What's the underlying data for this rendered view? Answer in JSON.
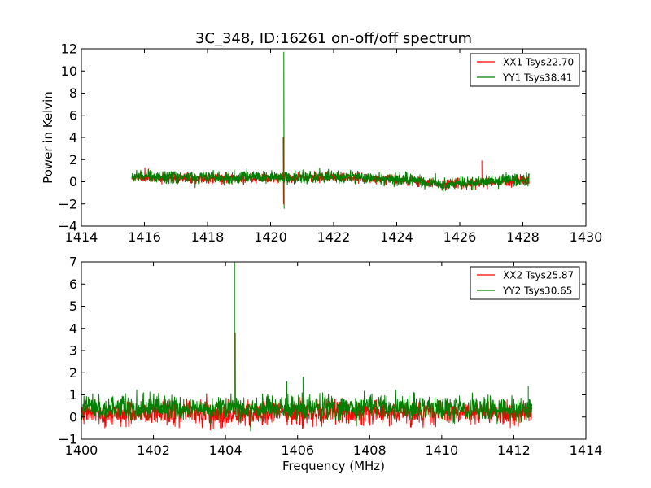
{
  "figure_title": "3C_348, ID:16261 on-off/off spectrum",
  "chart_data": [
    {
      "type": "line",
      "title": "3C_348, ID:16261 on-off/off spectrum",
      "xlabel": "",
      "ylabel": "Power in Kelvin",
      "xlim": [
        1414,
        1430
      ],
      "ylim": [
        -4,
        12
      ],
      "xticks": [
        1414,
        1416,
        1418,
        1420,
        1422,
        1424,
        1426,
        1428,
        1430
      ],
      "yticks": [
        -4,
        -2,
        0,
        2,
        4,
        6,
        8,
        10,
        12
      ],
      "legend_position": "top-right",
      "grid": false,
      "series": [
        {
          "name": "XX1 Tsys22.70",
          "color": "#ff0000",
          "x_range": [
            1415.6,
            1428.2
          ],
          "baseline": [
            [
              1415.6,
              0.35
            ],
            [
              1419,
              0.3
            ],
            [
              1422,
              0.45
            ],
            [
              1424.5,
              0.1
            ],
            [
              1425.5,
              -0.25
            ],
            [
              1426.5,
              -0.15
            ],
            [
              1428.2,
              0.15
            ]
          ],
          "noise_amplitude": 0.4,
          "spikes": [
            {
              "x": 1420.4,
              "y": 4.0,
              "min": -2.0
            },
            {
              "x": 1426.7,
              "y": 1.9
            }
          ]
        },
        {
          "name": "YY1 Tsys38.41",
          "color": "#008000",
          "x_range": [
            1415.6,
            1428.2
          ],
          "baseline": [
            [
              1415.6,
              0.5
            ],
            [
              1419,
              0.35
            ],
            [
              1422,
              0.5
            ],
            [
              1424.5,
              0.15
            ],
            [
              1425.5,
              -0.25
            ],
            [
              1426.5,
              -0.1
            ],
            [
              1428.2,
              0.2
            ]
          ],
          "noise_amplitude": 0.5,
          "spikes": [
            {
              "x": 1420.42,
              "y": 11.7,
              "min": -2.4
            }
          ]
        }
      ]
    },
    {
      "type": "line",
      "title": "",
      "xlabel": "Frequency (MHz)",
      "ylabel": "",
      "xlim": [
        1400,
        1414
      ],
      "ylim": [
        -1,
        7
      ],
      "xticks": [
        1400,
        1402,
        1404,
        1406,
        1408,
        1410,
        1412,
        1414
      ],
      "yticks": [
        -1,
        0,
        1,
        2,
        3,
        4,
        5,
        6,
        7
      ],
      "legend_position": "top-right",
      "grid": false,
      "series": [
        {
          "name": "XX2 Tsys25.87",
          "color": "#ff0000",
          "x_range": [
            1400,
            1412.5
          ],
          "baseline": [
            [
              1400,
              0.2
            ],
            [
              1404,
              0.15
            ],
            [
              1408,
              0.2
            ],
            [
              1412.5,
              0.15
            ]
          ],
          "noise_amplitude": 0.5,
          "spikes": [
            {
              "x": 1404.27,
              "y": 3.8
            }
          ]
        },
        {
          "name": "YY2 Tsys30.65",
          "color": "#008000",
          "x_range": [
            1400,
            1412.5
          ],
          "baseline": [
            [
              1400,
              0.45
            ],
            [
              1404,
              0.4
            ],
            [
              1408,
              0.45
            ],
            [
              1412.5,
              0.35
            ]
          ],
          "noise_amplitude": 0.5,
          "spikes": [
            {
              "x": 1404.25,
              "y": 7.0
            },
            {
              "x": 1406.15,
              "y": 1.8
            },
            {
              "x": 1405.7,
              "y": 1.6
            },
            {
              "x": 1412.4,
              "y": 1.4
            }
          ]
        }
      ]
    }
  ]
}
